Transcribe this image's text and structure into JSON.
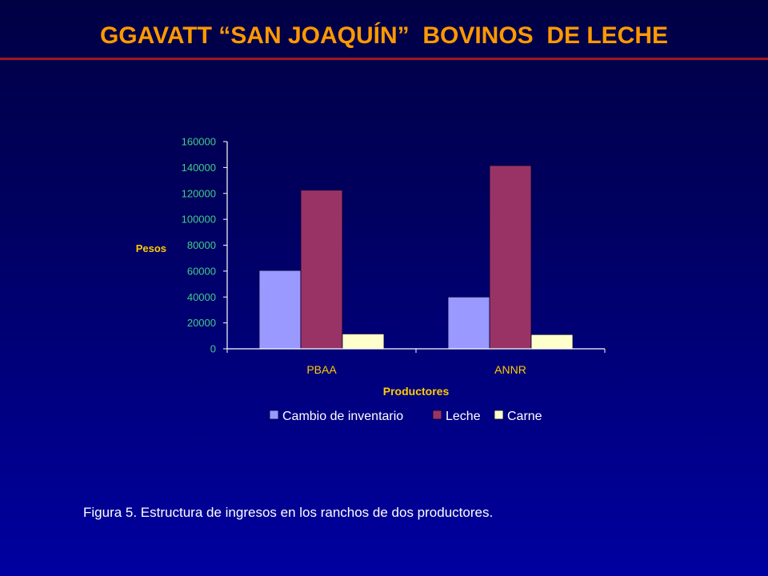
{
  "page": {
    "title": "GGAVATT “SAN JOAQUÍN”  BOVINOS  DE LECHE",
    "caption": "Figura 5. Estructura de ingresos en los ranchos de dos productores."
  },
  "colors": {
    "title": "#ff9900",
    "title_rule": "#a01818",
    "axis_label": "#ffcc00",
    "tick_label": "#44cc88",
    "category_label": "#ffcc00",
    "legend_text": "#ffffff",
    "axis_line": "#ffffff"
  },
  "chart_data": {
    "type": "bar",
    "title": "",
    "xlabel": "Productores",
    "ylabel": "Pesos",
    "categories": [
      "PBAA",
      "ANNR"
    ],
    "series": [
      {
        "name": "Cambio de inventario",
        "color": "#9999ff",
        "values": [
          60500,
          40000
        ]
      },
      {
        "name": "Leche",
        "color": "#993366",
        "values": [
          122500,
          141500
        ]
      },
      {
        "name": "Carne",
        "color": "#ffffcc",
        "values": [
          11500,
          11000
        ]
      }
    ],
    "ylim": [
      0,
      160000
    ],
    "yticks": [
      "0",
      "20000",
      "40000",
      "60000",
      "80000",
      "100000",
      "120000",
      "140000",
      "160000"
    ],
    "grid": false,
    "legend_position": "bottom"
  }
}
